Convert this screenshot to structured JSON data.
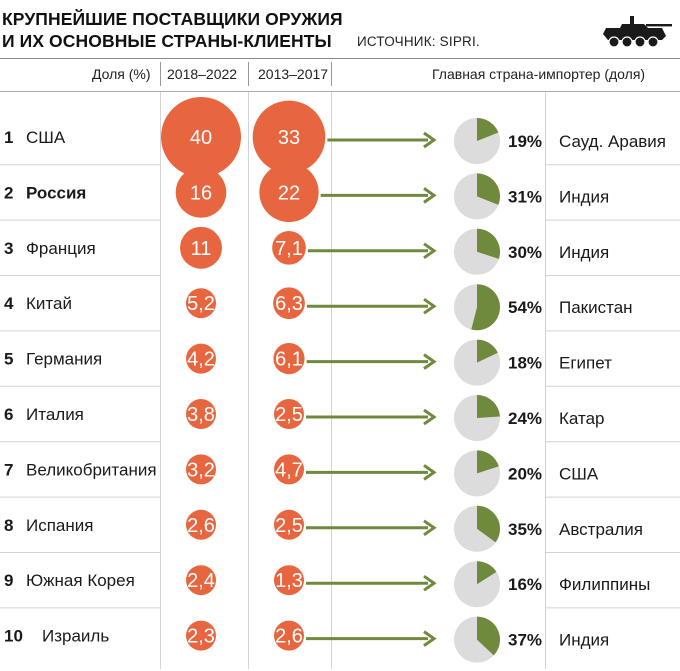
{
  "header": {
    "title_line1": "КРУПНЕЙШИЕ ПОСТАВЩИКИ ОРУЖИЯ",
    "title_line2": "И ИХ ОСНОВНЫЕ СТРАНЫ-КЛИЕНТЫ",
    "source": "ИСТОЧНИК: SIPRI.",
    "icon": "tank-icon"
  },
  "columns": {
    "share": "Доля (%)",
    "period1": "2018–2022",
    "period2": "2013–2017",
    "importer": "Главная страна-импортер (доля)"
  },
  "colors": {
    "bubble": "#e8663f",
    "arrow": "#6f8a3c",
    "pie_fill": "#6f8a3c",
    "pie_bg": "#dcdcdc",
    "row_line": "#d3d3d3"
  },
  "chart_data": {
    "type": "table",
    "series": [
      {
        "name": "2018–2022",
        "values": [
          40,
          16,
          11,
          5.2,
          4.2,
          3.8,
          3.2,
          2.6,
          2.4,
          2.3
        ]
      },
      {
        "name": "2013–2017",
        "values": [
          33,
          22,
          7.1,
          6.3,
          6.1,
          2.5,
          4.7,
          2.5,
          1.3,
          2.6
        ]
      }
    ],
    "rows": [
      {
        "rank": "1",
        "country": "США",
        "bold": false,
        "v1": 40,
        "v1_label": "40",
        "v2": 33,
        "v2_label": "33",
        "importer_share": 19,
        "importer_share_label": "19%",
        "importer": "Сауд. Аравия"
      },
      {
        "rank": "2",
        "country": "Россия",
        "bold": true,
        "v1": 16,
        "v1_label": "16",
        "v2": 22,
        "v2_label": "22",
        "importer_share": 31,
        "importer_share_label": "31%",
        "importer": "Индия"
      },
      {
        "rank": "3",
        "country": "Франция",
        "bold": false,
        "v1": 11,
        "v1_label": "11",
        "v2": 7.1,
        "v2_label": "7,1",
        "importer_share": 30,
        "importer_share_label": "30%",
        "importer": "Индия"
      },
      {
        "rank": "4",
        "country": "Китай",
        "bold": false,
        "v1": 5.2,
        "v1_label": "5,2",
        "v2": 6.3,
        "v2_label": "6,3",
        "importer_share": 54,
        "importer_share_label": "54%",
        "importer": "Пакистан"
      },
      {
        "rank": "5",
        "country": "Германия",
        "bold": false,
        "v1": 4.2,
        "v1_label": "4,2",
        "v2": 6.1,
        "v2_label": "6,1",
        "importer_share": 18,
        "importer_share_label": "18%",
        "importer": "Египет"
      },
      {
        "rank": "6",
        "country": "Италия",
        "bold": false,
        "v1": 3.8,
        "v1_label": "3,8",
        "v2": 2.5,
        "v2_label": "2,5",
        "importer_share": 24,
        "importer_share_label": "24%",
        "importer": "Катар"
      },
      {
        "rank": "7",
        "country": "Великобритания",
        "bold": false,
        "v1": 3.2,
        "v1_label": "3,2",
        "v2": 4.7,
        "v2_label": "4,7",
        "importer_share": 20,
        "importer_share_label": "20%",
        "importer": "США"
      },
      {
        "rank": "8",
        "country": "Испания",
        "bold": false,
        "v1": 2.6,
        "v1_label": "2,6",
        "v2": 2.5,
        "v2_label": "2,5",
        "importer_share": 35,
        "importer_share_label": "35%",
        "importer": "Австралия"
      },
      {
        "rank": "9",
        "country": "Южная Корея",
        "bold": false,
        "v1": 2.4,
        "v1_label": "2,4",
        "v2": 1.3,
        "v2_label": "1,3",
        "importer_share": 16,
        "importer_share_label": "16%",
        "importer": "Филиппины"
      },
      {
        "rank": "10",
        "country": "Израиль",
        "bold": false,
        "v1": 2.3,
        "v1_label": "2,3",
        "v2": 2.6,
        "v2_label": "2,6",
        "importer_share": 37,
        "importer_share_label": "37%",
        "importer": "Индия"
      }
    ]
  }
}
